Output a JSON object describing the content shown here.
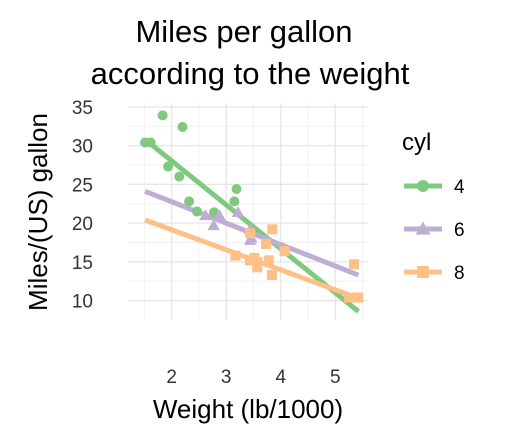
{
  "chart_data": {
    "type": "scatter",
    "title": [
      "Miles per gallon",
      "according to the weight"
    ],
    "xlabel": "Weight (lb/1000)",
    "ylabel": "Miles/(US) gallon",
    "xlim": [
      1.2,
      5.6
    ],
    "ylim": [
      7.5,
      35.5
    ],
    "x_ticks": [
      2,
      3,
      4,
      5
    ],
    "y_ticks": [
      10,
      15,
      20,
      25,
      30,
      35
    ],
    "grid": true,
    "legend": {
      "title": "cyl",
      "placement": "right"
    },
    "series": [
      {
        "name": "4",
        "color": "#7fc97f",
        "marker": "circle",
        "points": [
          [
            2.32,
            22.8
          ],
          [
            3.19,
            24.4
          ],
          [
            3.15,
            22.8
          ],
          [
            2.2,
            32.4
          ],
          [
            1.615,
            30.4
          ],
          [
            1.835,
            33.9
          ],
          [
            2.465,
            21.5
          ],
          [
            1.935,
            27.3
          ],
          [
            2.14,
            26.0
          ],
          [
            1.513,
            30.4
          ],
          [
            2.78,
            21.4
          ]
        ],
        "fit": [
          [
            1.513,
            30.8
          ],
          [
            5.424,
            8.6
          ]
        ]
      },
      {
        "name": "6",
        "color": "#beaed4",
        "marker": "triangle",
        "points": [
          [
            2.62,
            21.0
          ],
          [
            2.875,
            21.0
          ],
          [
            3.215,
            21.4
          ],
          [
            3.46,
            18.1
          ],
          [
            3.44,
            19.2
          ],
          [
            3.44,
            17.8
          ],
          [
            2.77,
            19.7
          ]
        ],
        "fit": [
          [
            1.513,
            24.1
          ],
          [
            5.424,
            13.3
          ]
        ]
      },
      {
        "name": "8",
        "color": "#fdc086",
        "marker": "square",
        "points": [
          [
            3.44,
            18.7
          ],
          [
            3.57,
            14.3
          ],
          [
            4.07,
            16.4
          ],
          [
            3.73,
            17.3
          ],
          [
            3.78,
            15.2
          ],
          [
            5.25,
            10.4
          ],
          [
            5.424,
            10.4
          ],
          [
            5.345,
            14.7
          ],
          [
            3.52,
            15.5
          ],
          [
            3.435,
            15.2
          ],
          [
            3.84,
            13.3
          ],
          [
            3.845,
            19.2
          ],
          [
            3.17,
            15.8
          ],
          [
            3.57,
            15.0
          ]
        ],
        "fit": [
          [
            1.513,
            20.4
          ],
          [
            5.424,
            10.3
          ]
        ]
      }
    ]
  }
}
